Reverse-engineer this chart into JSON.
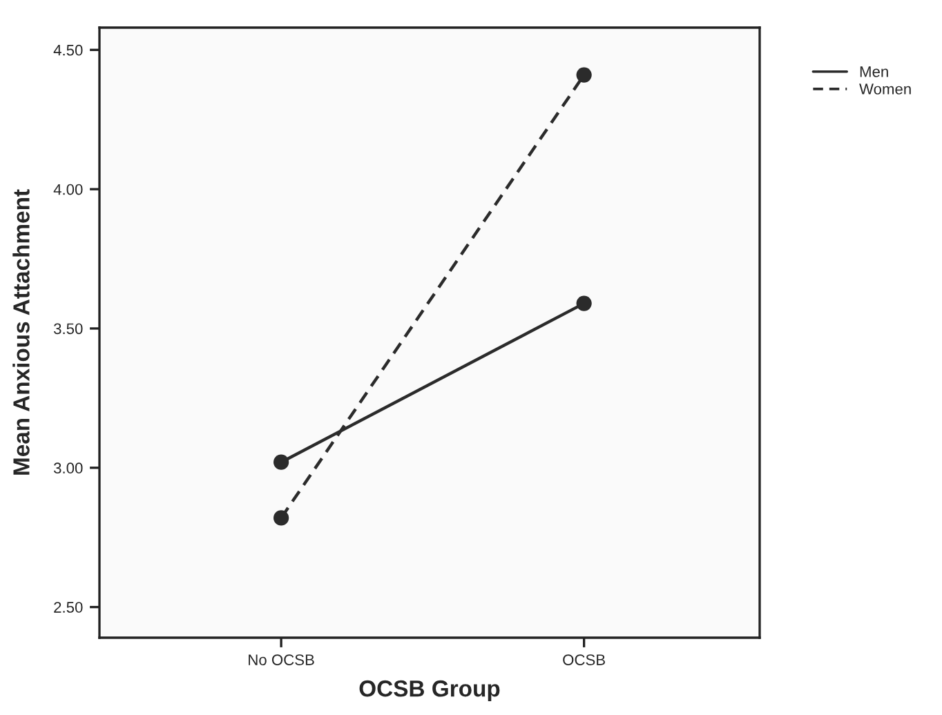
{
  "chart_data": {
    "type": "line",
    "xlabel": "OCSB Group",
    "ylabel": "Mean Anxious Attachment",
    "categories": [
      "No OCSB",
      "OCSB"
    ],
    "series": [
      {
        "name": "Men",
        "color": "#2b2b2b",
        "values": [
          3.02,
          3.59
        ],
        "line_style": "solid"
      },
      {
        "name": "Women",
        "color": "#2b2b2b",
        "values": [
          2.82,
          4.41
        ],
        "line_style": "dashed"
      }
    ],
    "ylim": [
      2.39,
      4.58
    ],
    "yticks": [
      {
        "value": 2.5,
        "label": "2.50"
      },
      {
        "value": 3.0,
        "label": "3.00"
      },
      {
        "value": 3.5,
        "label": "3.50"
      },
      {
        "value": 4.0,
        "label": "4.00"
      },
      {
        "value": 4.5,
        "label": "4.50"
      }
    ],
    "marker": "circle",
    "grid": false,
    "legend": "top right"
  }
}
